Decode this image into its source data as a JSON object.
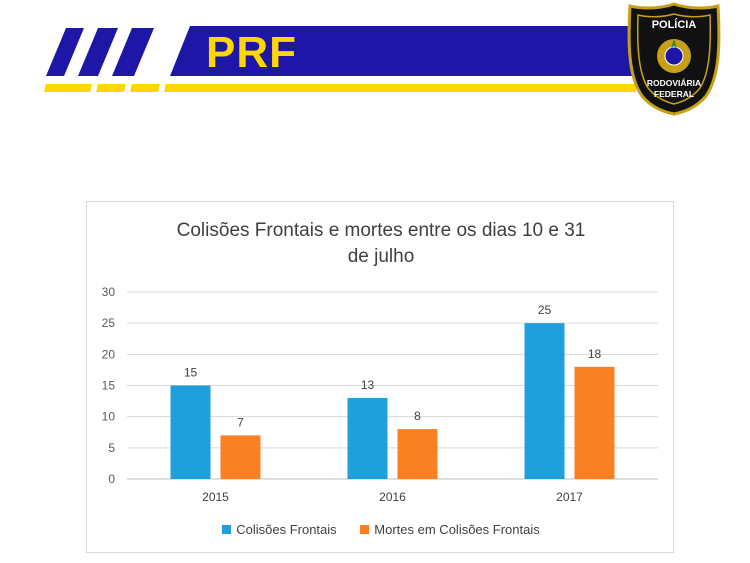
{
  "header": {
    "brand": "PRF",
    "badge": {
      "line1": "POLÍCIA",
      "line2": "RODOVIÁRIA",
      "line3": "FEDERAL"
    },
    "colors": {
      "blue": "#1d16a6",
      "yellow": "#ffd700",
      "gold": "#c8a018",
      "dark": "#111111"
    },
    "badge_icon": "prf-badge-icon"
  },
  "chart_data": {
    "type": "bar",
    "title": "Colisões Frontais e mortes entre os dias 10 e 31 de julho",
    "title_lines": [
      "Colisões Frontais e mortes entre os dias 10 e 31",
      "de julho"
    ],
    "categories": [
      "2015",
      "2016",
      "2017"
    ],
    "series": [
      {
        "name": "Colisões Frontais",
        "values": [
          15,
          13,
          25
        ],
        "color": "#1f9fdb"
      },
      {
        "name": "Mortes em Colisões Frontais",
        "values": [
          7,
          8,
          18
        ],
        "color": "#f98124"
      }
    ],
    "ylim": [
      0,
      30
    ],
    "yticks": [
      0,
      5,
      10,
      15,
      20,
      25,
      30
    ],
    "grid": true,
    "legend_position": "bottom"
  }
}
